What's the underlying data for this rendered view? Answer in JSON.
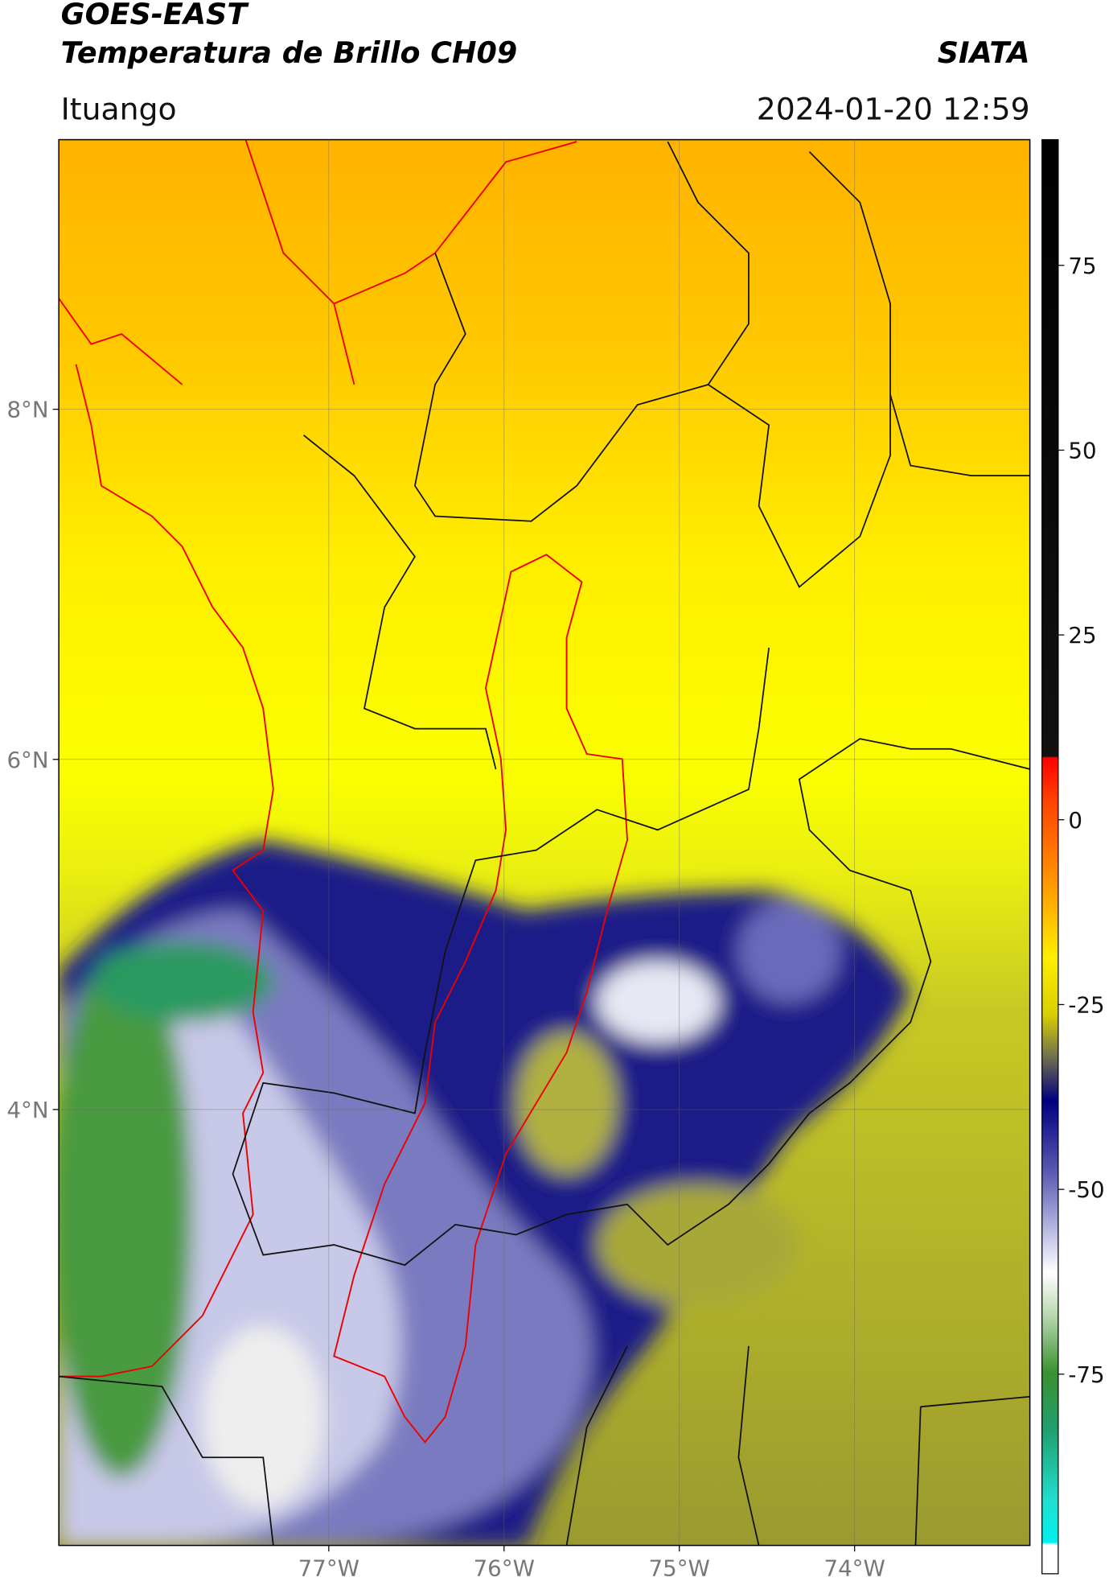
{
  "chart_data": {
    "type": "map",
    "title": "GOES-EAST",
    "subtitle": "Temperatura de Brillo CH09",
    "source": "SIATA",
    "location": "Ituango",
    "datetime": "2024-01-20 12:59",
    "xlim": [
      -78.54,
      -73.0
    ],
    "ylim": [
      1.51,
      9.54
    ],
    "xticks": [
      {
        "value": -77,
        "label": "77°W"
      },
      {
        "value": -76,
        "label": "76°W"
      },
      {
        "value": -75,
        "label": "75°W"
      },
      {
        "value": -74,
        "label": "74°W"
      }
    ],
    "yticks": [
      {
        "value": 8,
        "label": "8°N"
      },
      {
        "value": 6,
        "label": "6°N"
      },
      {
        "value": 4,
        "label": "4°N"
      }
    ],
    "grid": true,
    "colorbar": {
      "lim": [
        -102,
        92
      ],
      "ticks": [
        75,
        50,
        25,
        0,
        -25,
        -50,
        -75
      ]
    }
  }
}
